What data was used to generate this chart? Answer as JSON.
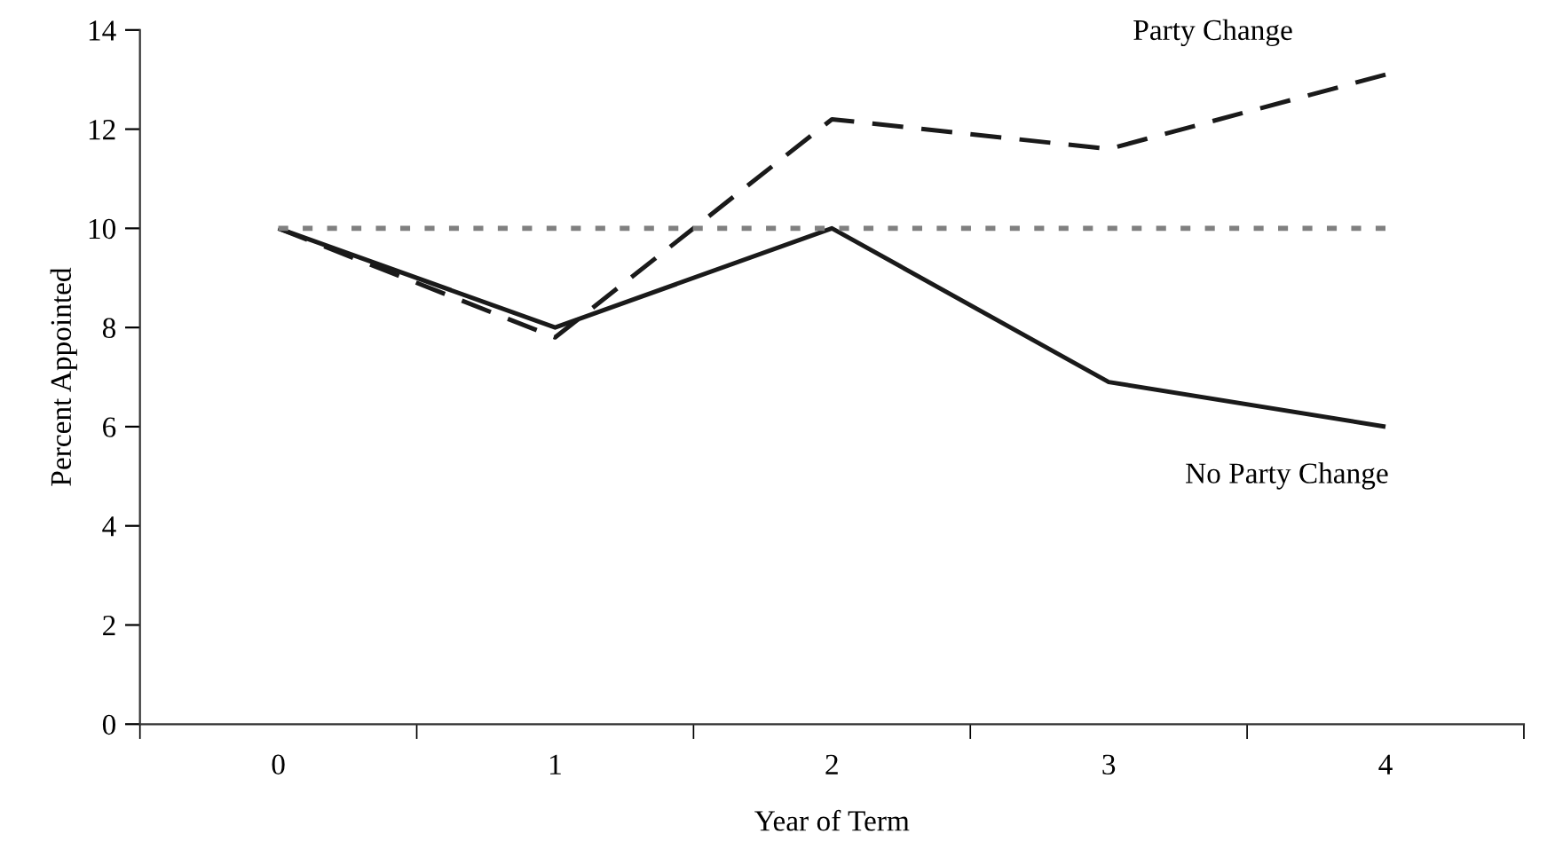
{
  "chart_data": {
    "type": "line",
    "xlabel": "Year of Term",
    "ylabel": "Percent Appointed",
    "categories": [
      "0",
      "1",
      "2",
      "3",
      "4"
    ],
    "series": [
      {
        "name": "Party Change",
        "color": "#1a1a1a",
        "line_style": "dashed",
        "values": [
          10,
          7.8,
          12.2,
          11.6,
          13.1
        ]
      },
      {
        "name": "No Party Change",
        "color": "#1a1a1a",
        "line_style": "solid",
        "values": [
          10,
          8.0,
          10.0,
          6.9,
          6.0
        ]
      },
      {
        "color": "#808080",
        "line_style": "dotted",
        "values": [
          10,
          10,
          10,
          10,
          10
        ]
      }
    ],
    "ylim": [
      0,
      14
    ],
    "yticks": [
      0,
      2,
      4,
      6,
      8,
      10,
      12,
      14
    ],
    "grid": false,
    "legend": false,
    "marker": "none"
  }
}
